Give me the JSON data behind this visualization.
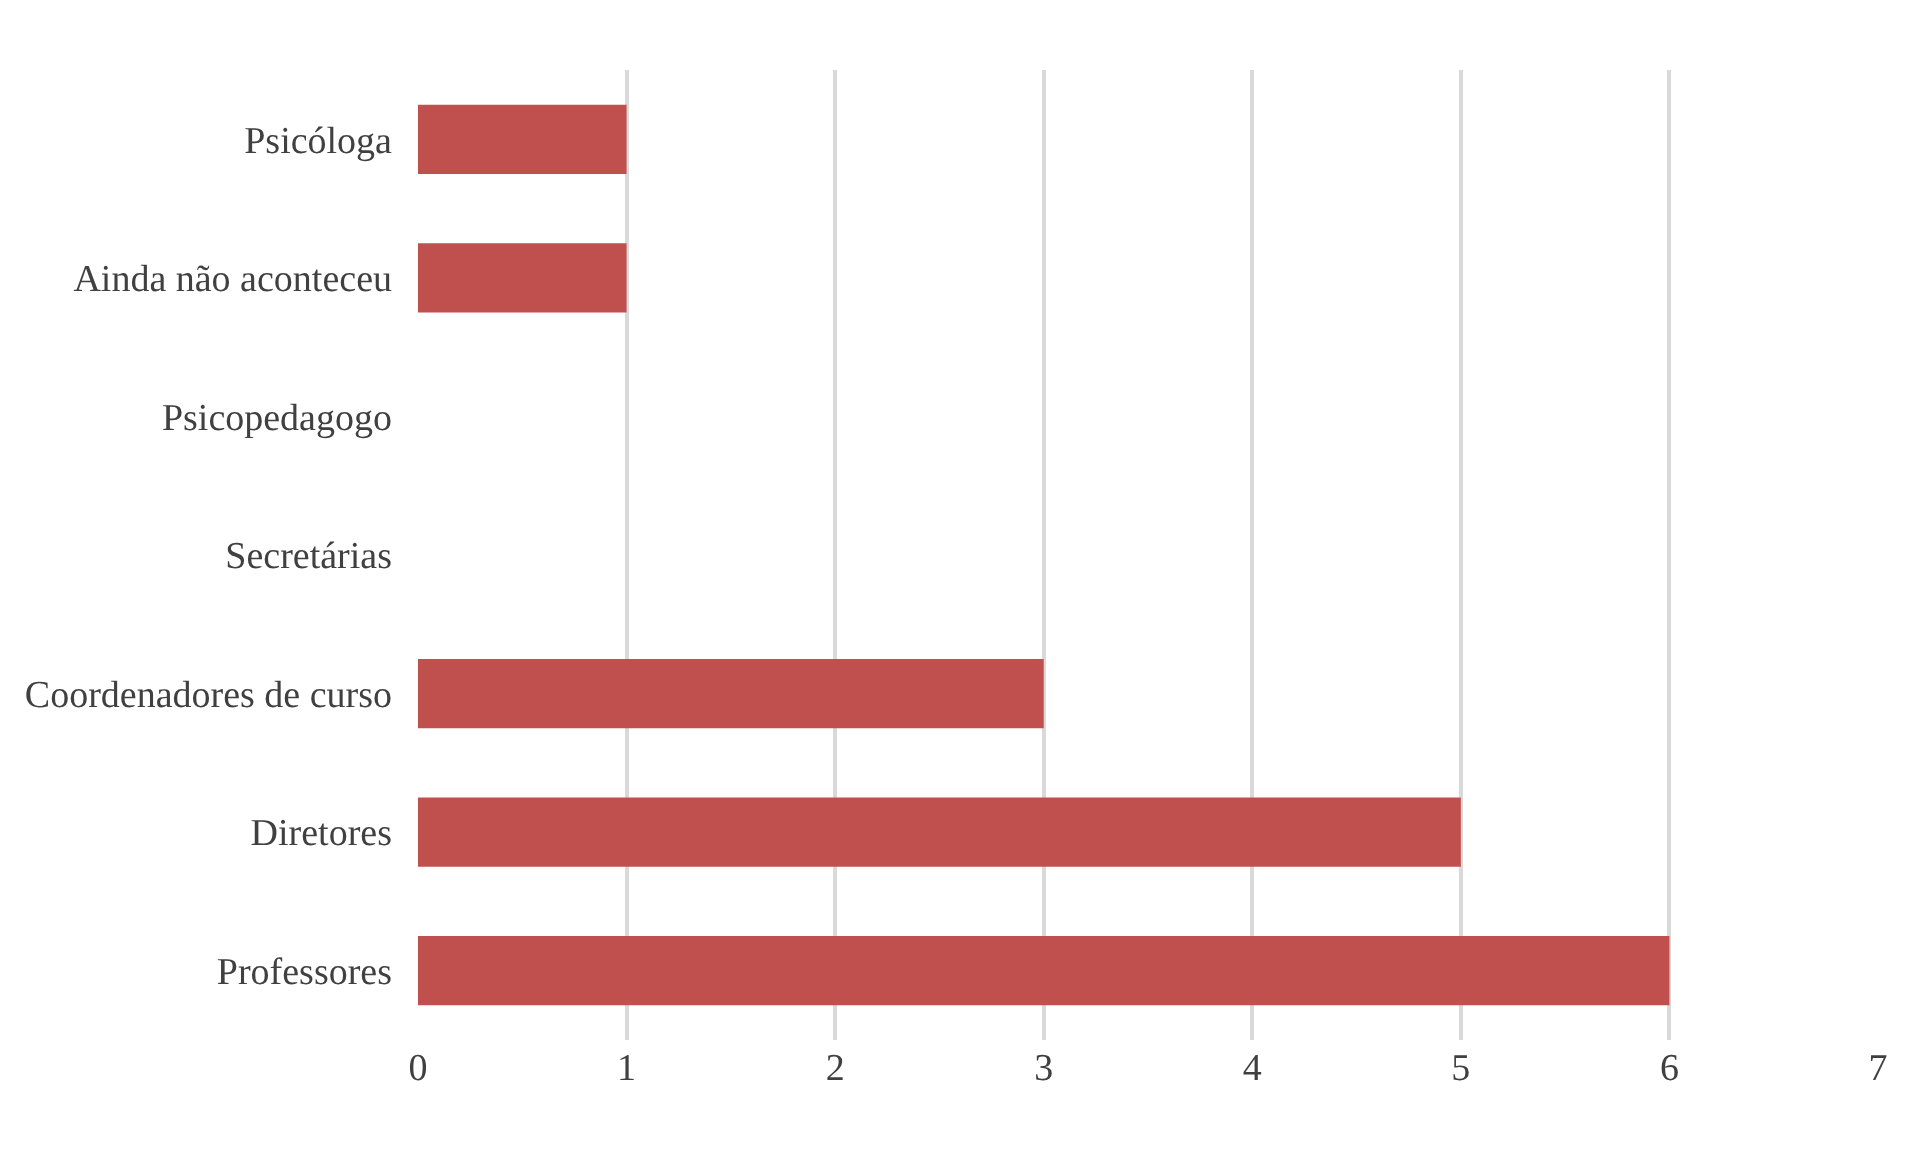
{
  "chart_data": {
    "type": "bar",
    "orientation": "horizontal",
    "categories": [
      "Psicóloga",
      "Ainda não aconteceu",
      "Psicopedagogo",
      "Secretárias",
      "Coordenadores de curso",
      "Diretores",
      "Professores"
    ],
    "values": [
      1,
      1,
      0,
      0,
      3,
      5,
      6
    ],
    "color": "#c0504d",
    "xlim": [
      0,
      7
    ],
    "xticks": [
      0,
      1,
      2,
      3,
      4,
      5,
      6,
      7
    ],
    "grid": "x",
    "legend": false
  }
}
